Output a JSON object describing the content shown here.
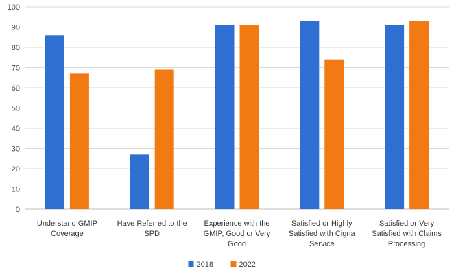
{
  "chart_data": {
    "type": "bar",
    "title": "",
    "xlabel": "",
    "ylabel": "",
    "ylim": [
      0,
      100
    ],
    "yticks": [
      0,
      10,
      20,
      30,
      40,
      50,
      60,
      70,
      80,
      90,
      100
    ],
    "grid": true,
    "legend_position": "bottom",
    "categories": [
      [
        "Understand GMIP",
        "Coverage"
      ],
      [
        "Have Referred to the",
        "SPD"
      ],
      [
        "Experience with the",
        "GMIP, Good or Very",
        "Good"
      ],
      [
        "Satisfied or Highly",
        "Satisfied with Cigna",
        "Service"
      ],
      [
        "Satisfied or Very",
        "Satisfied with Claims",
        "Processing"
      ]
    ],
    "series": [
      {
        "name": "2018",
        "color": "#2f6fd1",
        "values": [
          86,
          27,
          91,
          93,
          91
        ]
      },
      {
        "name": "2022",
        "color": "#f27a12",
        "values": [
          67,
          69,
          91,
          74,
          93
        ]
      }
    ]
  }
}
